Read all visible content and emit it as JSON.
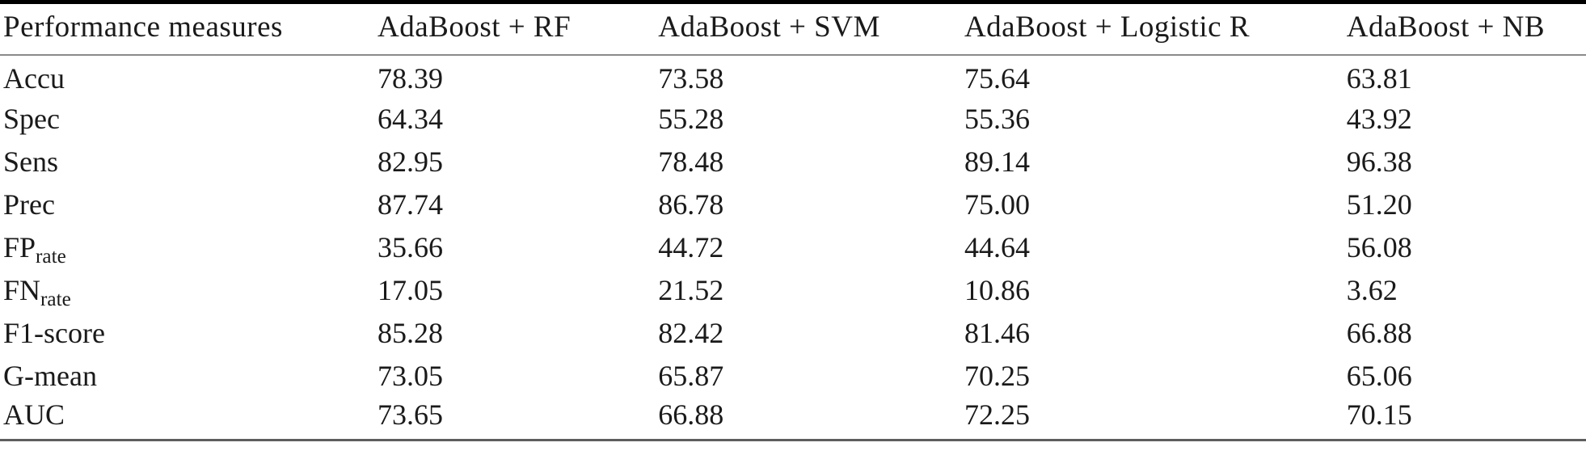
{
  "table": {
    "columns": [
      "Performance measures",
      "AdaBoost + RF",
      "AdaBoost + SVM",
      "AdaBoost + Logistic R",
      "AdaBoost + NB"
    ],
    "rows": [
      {
        "label": "Accu",
        "sub": "",
        "values": [
          "78.39",
          "73.58",
          "75.64",
          "63.81"
        ]
      },
      {
        "label": "Spec",
        "sub": "",
        "values": [
          "64.34",
          "55.28",
          "55.36",
          "43.92"
        ]
      },
      {
        "label": "Sens",
        "sub": "",
        "values": [
          "82.95",
          "78.48",
          "89.14",
          "96.38"
        ]
      },
      {
        "label": "Prec",
        "sub": "",
        "values": [
          "87.74",
          "86.78",
          "75.00",
          "51.20"
        ]
      },
      {
        "label": "FP",
        "sub": "rate",
        "values": [
          "35.66",
          "44.72",
          "44.64",
          "56.08"
        ]
      },
      {
        "label": "FN",
        "sub": "rate",
        "values": [
          "17.05",
          "21.52",
          "10.86",
          "3.62"
        ]
      },
      {
        "label": "F1-score",
        "sub": "",
        "values": [
          "85.28",
          "82.42",
          "81.46",
          "66.88"
        ]
      },
      {
        "label": "G-mean",
        "sub": "",
        "values": [
          "73.05",
          "65.87",
          "70.25",
          "65.06"
        ]
      },
      {
        "label": "AUC",
        "sub": "",
        "values": [
          "73.65",
          "66.88",
          "72.25",
          "70.15"
        ]
      }
    ]
  },
  "colors": {
    "text": "#1a1a1a",
    "rule_top": "#000000",
    "rule_mid": "#8a8a8a",
    "rule_bottom": "#5e5e5e",
    "background": "#ffffff"
  }
}
